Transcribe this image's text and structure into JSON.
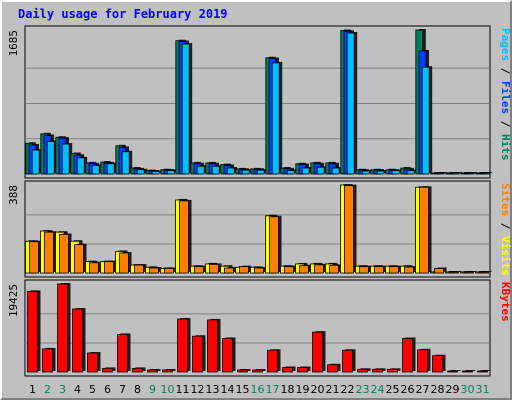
{
  "chart_data": {
    "type": "bar",
    "title": "Daily usage for February 2019",
    "categories": [
      "1",
      "2",
      "3",
      "4",
      "5",
      "6",
      "7",
      "8",
      "9",
      "10",
      "11",
      "12",
      "13",
      "14",
      "15",
      "16",
      "17",
      "18",
      "19",
      "20",
      "21",
      "22",
      "23",
      "24",
      "25",
      "26",
      "27",
      "28",
      "29",
      "30",
      "31"
    ],
    "weekend_days": [
      "2",
      "3",
      "9",
      "10",
      "16",
      "17",
      "23",
      "24",
      "30",
      "31"
    ],
    "colors": {
      "hits": "#00805c",
      "files": "#0040ff",
      "pages": "#00c0ff",
      "visits": "#ffff00",
      "sites": "#ff8000",
      "kbytes": "#ff0000",
      "title": "#0000ff",
      "weekday_label": "#000000",
      "weekend_label": "#00805c"
    },
    "panels": [
      {
        "id": "top",
        "ymax_label": "1685",
        "ylim": [
          0,
          1685
        ],
        "right_label": [
          {
            "text": "Pages",
            "color": "#00c0ff"
          },
          {
            "text": " / ",
            "color": "#000000"
          },
          {
            "text": "Files",
            "color": "#0040ff"
          },
          {
            "text": " / ",
            "color": "#000000"
          },
          {
            "text": "Hits",
            "color": "#00805c"
          }
        ],
        "series": [
          {
            "name": "Hits",
            "values": [
              360,
              470,
              430,
              240,
              130,
              140,
              330,
              70,
              40,
              50,
              1560,
              130,
              130,
              110,
              60,
              60,
              1360,
              70,
              120,
              130,
              130,
              1680,
              50,
              50,
              50,
              70,
              1685,
              0,
              0,
              0,
              0
            ]
          },
          {
            "name": "Files",
            "values": [
              340,
              450,
              420,
              220,
              120,
              130,
              310,
              60,
              35,
              45,
              1550,
              120,
              120,
              100,
              55,
              55,
              1350,
              60,
              110,
              120,
              120,
              1670,
              45,
              45,
              45,
              60,
              1440,
              0,
              0,
              0,
              0
            ]
          },
          {
            "name": "Pages",
            "values": [
              280,
              380,
              350,
              190,
              100,
              120,
              260,
              50,
              30,
              40,
              1520,
              90,
              90,
              70,
              45,
              45,
              1300,
              40,
              70,
              80,
              70,
              1650,
              35,
              35,
              40,
              40,
              1250,
              0,
              0,
              0,
              0
            ]
          }
        ]
      },
      {
        "id": "middle",
        "ymax_label": "388",
        "ylim": [
          0,
          388
        ],
        "right_label": [
          {
            "text": "Sites",
            "color": "#ff8000"
          },
          {
            "text": " / ",
            "color": "#000000"
          },
          {
            "text": "Visits",
            "color": "#ffff00"
          }
        ],
        "series": [
          {
            "name": "Visits",
            "values": [
              140,
              185,
              180,
              140,
              50,
              50,
              95,
              35,
              25,
              20,
              322,
              30,
              40,
              30,
              25,
              25,
              252,
              30,
              40,
              40,
              40,
              388,
              30,
              30,
              30,
              30,
              378,
              0,
              0,
              0,
              0
            ]
          },
          {
            "name": "Sites",
            "values": [
              138,
              180,
              170,
              125,
              45,
              50,
              88,
              35,
              22,
              20,
              318,
              28,
              38,
              22,
              28,
              22,
              248,
              28,
              32,
              36,
              34,
              385,
              28,
              28,
              28,
              26,
              378,
              20,
              0,
              0,
              0
            ]
          }
        ]
      },
      {
        "id": "bottom",
        "ymax_label": "19425",
        "ylim": [
          0,
          19425
        ],
        "right_label": [
          {
            "text": "KBytes",
            "color": "#ff0000"
          }
        ],
        "series": [
          {
            "name": "KBytes",
            "values": [
              17800,
              5100,
              19425,
              13900,
              4200,
              800,
              8300,
              800,
              400,
              400,
              11700,
              7900,
              11500,
              7400,
              400,
              400,
              4800,
              1000,
              1000,
              8800,
              1600,
              4800,
              600,
              600,
              600,
              7400,
              4900,
              3600,
              0,
              0,
              0
            ]
          }
        ]
      }
    ]
  }
}
